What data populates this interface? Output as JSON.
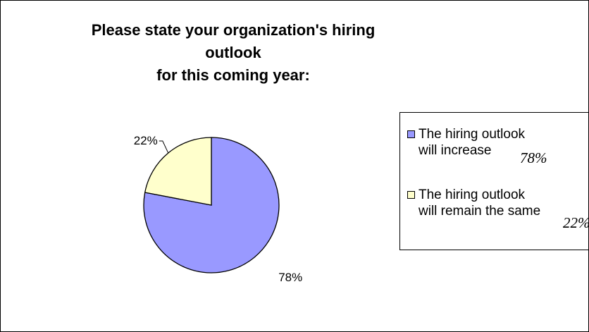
{
  "title_lines": [
    "Please state your organization's hiring outlook",
    "for this coming year:"
  ],
  "chart_data": {
    "type": "pie",
    "title": "Please state your organization's hiring outlook for this coming year:",
    "slices": [
      {
        "name": "The hiring outlook will increase",
        "value": 78,
        "label": "78%",
        "color": "#9999ff"
      },
      {
        "name": "The hiring outlook will remain the same",
        "value": 22,
        "label": "22%",
        "color": "#ffffcc"
      }
    ],
    "legend_placement": "right"
  },
  "legend": {
    "entries": [
      {
        "lines": [
          "The hiring outlook",
          "will increase"
        ],
        "pct": "78%",
        "color": "#9999ff"
      },
      {
        "lines": [
          "The hiring outlook",
          "will remain the same"
        ],
        "pct": "22%",
        "color": "#ffffcc"
      }
    ]
  }
}
